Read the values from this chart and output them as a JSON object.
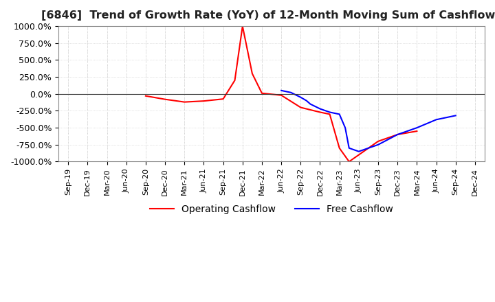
{
  "title": "[6846]  Trend of Growth Rate (YoY) of 12-Month Moving Sum of Cashflows",
  "title_fontsize": 11.5,
  "ylim": [
    -1000,
    1000
  ],
  "yticks": [
    -1000,
    -750,
    -500,
    -250,
    0,
    250,
    500,
    750,
    1000
  ],
  "ytick_labels": [
    "-1000.0%",
    "-750.0%",
    "-500.0%",
    "-250.0%",
    "0.0%",
    "250.0%",
    "500.0%",
    "750.0%",
    "1000.0%"
  ],
  "background_color": "#ffffff",
  "grid_color": "#c8c8c8",
  "operating_color": "#ff0000",
  "free_color": "#0000ff",
  "legend_labels": [
    "Operating Cashflow",
    "Free Cashflow"
  ],
  "x_labels": [
    "Sep-19",
    "Dec-19",
    "Mar-20",
    "Jun-20",
    "Sep-20",
    "Dec-20",
    "Mar-21",
    "Jun-21",
    "Sep-21",
    "Dec-21",
    "Mar-22",
    "Jun-22",
    "Sep-22",
    "Dec-22",
    "Mar-23",
    "Jun-23",
    "Sep-23",
    "Dec-23",
    "Mar-24",
    "Jun-24",
    "Sep-24",
    "Dec-24"
  ],
  "op_x": [
    4,
    5,
    6,
    7,
    8,
    8.6,
    8.85,
    9,
    9.5,
    10,
    11,
    12,
    13,
    13.5,
    14,
    14.5,
    15,
    16,
    17,
    18
  ],
  "op_y": [
    -30,
    -80,
    -120,
    -105,
    -75,
    200,
    700,
    1000,
    300,
    10,
    -20,
    -200,
    -270,
    -300,
    -800,
    -1000,
    -900,
    -700,
    -600,
    -550
  ],
  "free_x": [
    11,
    11.5,
    12,
    12.3,
    12.5,
    13,
    13.5,
    14,
    14.3,
    14.5,
    15,
    16,
    17,
    18,
    19,
    20
  ],
  "free_y": [
    50,
    20,
    -50,
    -100,
    -150,
    -220,
    -270,
    -300,
    -500,
    -800,
    -850,
    -750,
    -600,
    -500,
    -380,
    -320
  ]
}
